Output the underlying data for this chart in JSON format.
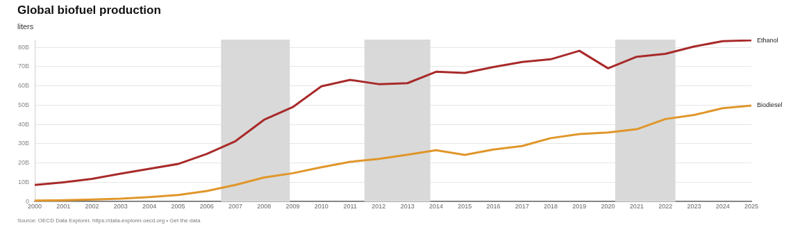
{
  "chart_data": {
    "type": "line",
    "title": "Global biofuel production",
    "ylabel": "liters",
    "x": [
      2000,
      2001,
      2002,
      2003,
      2004,
      2005,
      2006,
      2007,
      2008,
      2009,
      2010,
      2011,
      2012,
      2013,
      2014,
      2015,
      2016,
      2017,
      2018,
      2019,
      2020,
      2021,
      2022,
      2023,
      2024,
      2025
    ],
    "series": [
      {
        "name": "Ethanol",
        "color": "#a82a2a",
        "values": [
          8.6,
          10,
          11.8,
          14.5,
          17,
          19.5,
          24.7,
          31.3,
          42.4,
          49,
          59.8,
          63.1,
          60.9,
          61.4,
          67.3,
          66.7,
          69.8,
          72.4,
          73.8,
          78.2,
          69.1,
          75.1,
          76.6,
          80.4,
          83.2,
          83.6
        ]
      },
      {
        "name": "Biodiesel",
        "color": "#e0962a",
        "values": [
          0.5,
          0.7,
          1.1,
          1.5,
          2.3,
          3.4,
          5.5,
          8.6,
          12.5,
          14.7,
          17.8,
          20.6,
          22.1,
          24.3,
          26.6,
          24.2,
          27,
          28.8,
          32.9,
          35,
          35.8,
          37.5,
          42.8,
          44.9,
          48.4,
          49.8
        ]
      }
    ],
    "xlim": [
      2000,
      2025
    ],
    "xticks": [
      2000,
      2001,
      2002,
      2003,
      2004,
      2005,
      2006,
      2007,
      2008,
      2009,
      2010,
      2011,
      2012,
      2013,
      2014,
      2015,
      2016,
      2017,
      2018,
      2019,
      2020,
      2021,
      2022,
      2023,
      2024,
      2025
    ],
    "ylim": [
      0,
      84
    ],
    "yticks": [
      0,
      {
        "value": 10,
        "label": "10B"
      },
      {
        "value": 20,
        "label": "20B"
      },
      {
        "value": 30,
        "label": "30B"
      },
      {
        "value": 40,
        "label": "40B"
      },
      {
        "value": 50,
        "label": "50B"
      },
      {
        "value": 60,
        "label": "60B"
      },
      {
        "value": 70,
        "label": "70B"
      },
      {
        "value": 80,
        "label": "80B"
      }
    ],
    "bands": [
      {
        "axis": "x",
        "from": 2006.5,
        "to": 2008.9,
        "color": "#d9d9d9"
      },
      {
        "axis": "x",
        "from": 2011.5,
        "to": 2013.8,
        "color": "#d9d9d9"
      },
      {
        "axis": "x",
        "from": 2020.25,
        "to": 2022.35,
        "color": "#d9d9d9"
      }
    ],
    "grid": "y",
    "legend": false,
    "marker": "none",
    "line_style": "solid",
    "annotations": [
      "Source: OECD Data Explorer, https://data-explorer.oecd.org • Get the data"
    ]
  }
}
